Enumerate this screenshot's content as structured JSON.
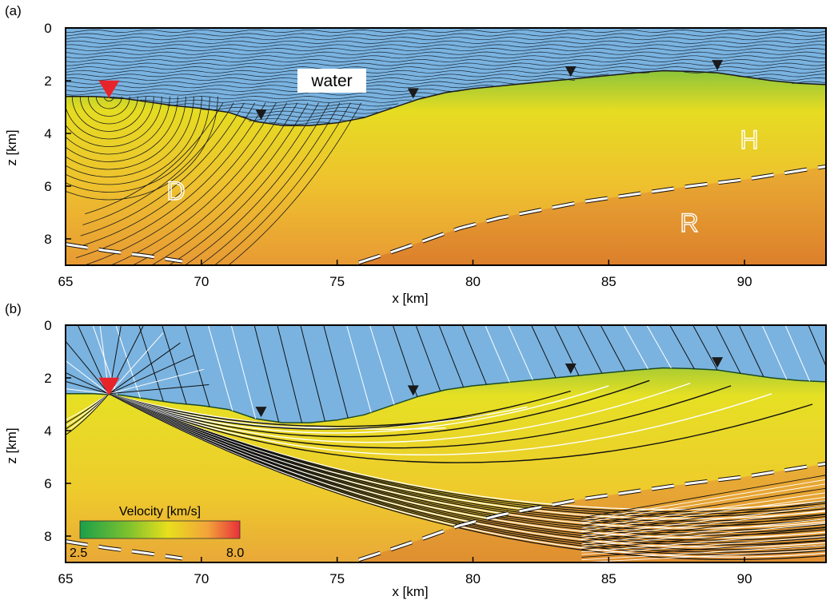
{
  "panels": [
    {
      "letter": "(a)",
      "x_ticks": [
        "65",
        "70",
        "75",
        "80",
        "85",
        "90"
      ],
      "y_ticks": [
        "0",
        "2",
        "4",
        "6",
        "8"
      ],
      "x_label": "x [km]",
      "y_label": "z [km]",
      "region_labels": {
        "water": "water",
        "d": "D",
        "h": "H",
        "r": "R"
      }
    },
    {
      "letter": "(b)",
      "x_ticks": [
        "65",
        "70",
        "75",
        "80",
        "85",
        "90"
      ],
      "y_ticks": [
        "0",
        "2",
        "4",
        "6",
        "8"
      ],
      "x_label": "x [km]",
      "y_label": "z [km]"
    }
  ],
  "colorbar": {
    "title": "Velocity [km/s]",
    "min_label": "2.5",
    "max_label": "8.0",
    "min": 2.5,
    "max": 8.0,
    "colors": [
      "#1aa04a",
      "#7dc12e",
      "#e8df1c",
      "#f2a33a",
      "#e8313a"
    ]
  },
  "model": {
    "x_range": [
      65,
      93
    ],
    "z_range": [
      0,
      9
    ],
    "water_color": "#7ab3e0",
    "source_x": 66.6,
    "source_z": 2.6,
    "source_color": "#e8242b",
    "receivers_x": [
      72.2,
      77.8,
      83.6,
      89.0
    ],
    "seafloor": [
      [
        65,
        2.6
      ],
      [
        66,
        2.6
      ],
      [
        67,
        2.65
      ],
      [
        68,
        2.8
      ],
      [
        69,
        2.95
      ],
      [
        70,
        3.05
      ],
      [
        71,
        3.2
      ],
      [
        72,
        3.55
      ],
      [
        73,
        3.7
      ],
      [
        74,
        3.7
      ],
      [
        75,
        3.6
      ],
      [
        76,
        3.4
      ],
      [
        77,
        3.05
      ],
      [
        78,
        2.7
      ],
      [
        79,
        2.45
      ],
      [
        80,
        2.3
      ],
      [
        81,
        2.2
      ],
      [
        82,
        2.1
      ],
      [
        83,
        2.0
      ],
      [
        84,
        1.9
      ],
      [
        85,
        1.8
      ],
      [
        86,
        1.7
      ],
      [
        87,
        1.62
      ],
      [
        88,
        1.65
      ],
      [
        89,
        1.7
      ],
      [
        90,
        1.85
      ],
      [
        91,
        2.0
      ],
      [
        92,
        2.1
      ],
      [
        93,
        2.15
      ]
    ],
    "boundary_left": [
      [
        65,
        8.2
      ],
      [
        66.5,
        8.45
      ],
      [
        68,
        8.65
      ],
      [
        69.3,
        8.85
      ]
    ],
    "boundary_right": [
      [
        75.8,
        8.9
      ],
      [
        77,
        8.5
      ],
      [
        78,
        8.15
      ],
      [
        79.5,
        7.6
      ],
      [
        81,
        7.2
      ],
      [
        82.5,
        6.9
      ],
      [
        84,
        6.6
      ],
      [
        86,
        6.3
      ],
      [
        88,
        6.0
      ],
      [
        90,
        5.75
      ],
      [
        91.5,
        5.5
      ],
      [
        93,
        5.25
      ]
    ]
  }
}
